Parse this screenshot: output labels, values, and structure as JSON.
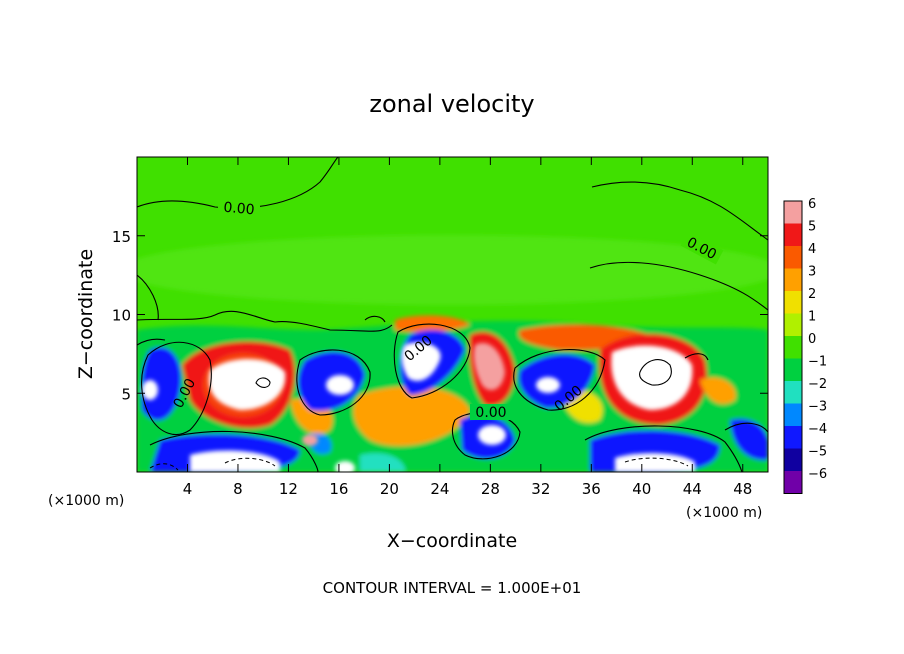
{
  "chart_data": {
    "type": "heatmap",
    "title": "zonal velocity",
    "xlabel": "X−coordinate",
    "ylabel": "Z−coordinate",
    "x_unit_left": "(×1000 m)",
    "x_unit_right": "(×1000 m)",
    "footer": "CONTOUR INTERVAL = 1.000E+01",
    "xlim": [
      0,
      50
    ],
    "ylim": [
      0,
      20
    ],
    "x_ticks": [
      "4",
      "8",
      "12",
      "16",
      "20",
      "24",
      "28",
      "32",
      "36",
      "40",
      "44",
      "48"
    ],
    "y_ticks": [
      "5",
      "10",
      "15"
    ],
    "colorbar_ticks": [
      "6",
      "5",
      "4",
      "3",
      "2",
      "1",
      "0",
      "−1",
      "−2",
      "−3",
      "−4",
      "−5",
      "−6"
    ],
    "colorbar_colors": [
      "#f4a0a0",
      "#f01818",
      "#fa5a00",
      "#ffa000",
      "#f0e000",
      "#b0f000",
      "#40e000",
      "#00d040",
      "#20e0c0",
      "#0088ff",
      "#1018ff",
      "#1000a0",
      "#7000a8"
    ],
    "contour_labels": [
      "0.00",
      "0.00",
      "0.00",
      "0.00",
      "0.00",
      "0.00"
    ],
    "grid": false
  }
}
